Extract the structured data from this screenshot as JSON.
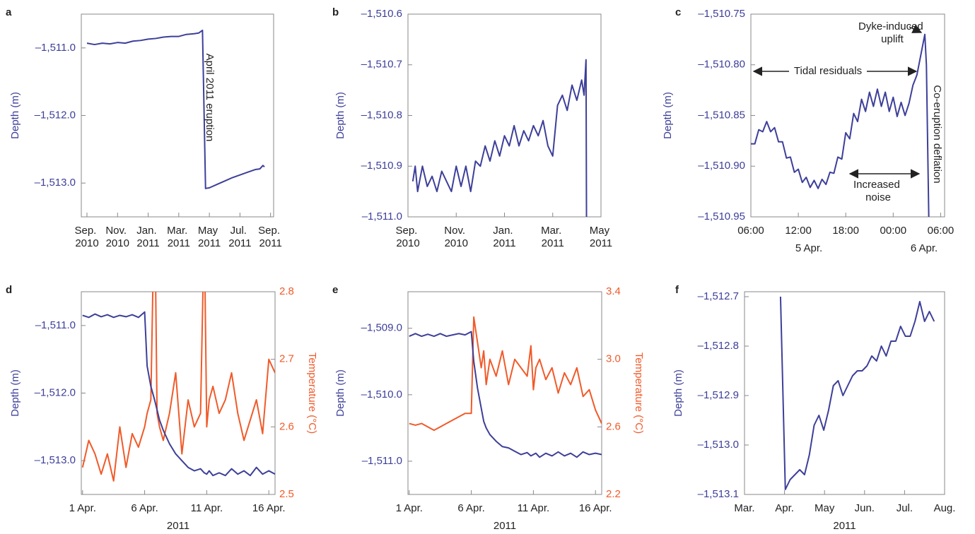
{
  "chart_data": [
    {
      "type": "line",
      "panel": "a",
      "y_label": "Depth (m)",
      "xlim": [
        -0.37,
        12.2
      ],
      "xticks": [
        {
          "value": 0,
          "label": "Sep.\n2010"
        },
        {
          "value": 2,
          "label": "Nov.\n2010"
        },
        {
          "value": 4,
          "label": "Jan.\n2011"
        },
        {
          "value": 6,
          "label": "Mar.\n2011"
        },
        {
          "value": 8,
          "label": "May\n2011"
        },
        {
          "value": 10,
          "label": "Jul.\n2011"
        },
        {
          "value": 12,
          "label": "Sep.\n2011"
        }
      ],
      "ylim": [
        -1513.5,
        -1510.5
      ],
      "yticks": [
        {
          "value": -1511,
          "label": "–1,511.0"
        },
        {
          "value": -1512,
          "label": "–1,512.0"
        },
        {
          "value": -1513,
          "label": "–1,513.0"
        }
      ],
      "annotations": [
        "April 2011 eruption"
      ],
      "x": [
        0,
        0.5,
        1,
        1.5,
        2,
        2.5,
        3,
        3.5,
        4,
        4.5,
        5,
        5.5,
        6,
        6.5,
        7,
        7.3,
        7.55,
        7.65,
        7.75,
        8,
        8.5,
        9,
        9.5,
        10,
        10.5,
        11,
        11.3,
        11.5,
        11.6
      ],
      "series": [
        {
          "color": "#3d3f99",
          "values": [
            -1510.93,
            -1510.95,
            -1510.93,
            -1510.94,
            -1510.92,
            -1510.93,
            -1510.9,
            -1510.89,
            -1510.87,
            -1510.86,
            -1510.84,
            -1510.83,
            -1510.83,
            -1510.8,
            -1510.79,
            -1510.78,
            -1510.74,
            -1511.9,
            -1513.08,
            -1513.07,
            -1513.02,
            -1512.97,
            -1512.92,
            -1512.88,
            -1512.84,
            -1512.8,
            -1512.79,
            -1512.74,
            -1512.76
          ]
        }
      ]
    },
    {
      "type": "line",
      "panel": "b",
      "y_label": "Depth (m)",
      "xlim": [
        0,
        8
      ],
      "xticks": [
        {
          "value": 0,
          "label": "Sep.\n2010"
        },
        {
          "value": 2,
          "label": "Nov.\n2010"
        },
        {
          "value": 4,
          "label": "Jan.\n2011"
        },
        {
          "value": 6,
          "label": "Mar.\n2011"
        },
        {
          "value": 8,
          "label": "May\n2011"
        }
      ],
      "ylim": [
        -1511.0,
        -1510.6
      ],
      "yticks": [
        {
          "value": -1510.6,
          "label": "–1,510.6"
        },
        {
          "value": -1510.7,
          "label": "–1,510.7"
        },
        {
          "value": -1510.8,
          "label": "–1,510.8"
        },
        {
          "value": -1510.9,
          "label": "–1,510.9"
        },
        {
          "value": -1511.0,
          "label": "–1,511.0"
        }
      ],
      "x": [
        0.2,
        0.3,
        0.4,
        0.6,
        0.8,
        1.0,
        1.2,
        1.4,
        1.6,
        1.8,
        2.0,
        2.2,
        2.4,
        2.6,
        2.8,
        3.0,
        3.2,
        3.4,
        3.6,
        3.8,
        4.0,
        4.2,
        4.4,
        4.6,
        4.8,
        5.0,
        5.2,
        5.4,
        5.6,
        5.8,
        6.0,
        6.2,
        6.4,
        6.6,
        6.8,
        7.0,
        7.2,
        7.3,
        7.38,
        7.4
      ],
      "series": [
        {
          "color": "#3d3f99",
          "values": [
            -1510.93,
            -1510.9,
            -1510.95,
            -1510.9,
            -1510.94,
            -1510.92,
            -1510.95,
            -1510.91,
            -1510.93,
            -1510.95,
            -1510.9,
            -1510.94,
            -1510.9,
            -1510.95,
            -1510.89,
            -1510.9,
            -1510.86,
            -1510.89,
            -1510.85,
            -1510.88,
            -1510.84,
            -1510.86,
            -1510.82,
            -1510.86,
            -1510.83,
            -1510.85,
            -1510.82,
            -1510.84,
            -1510.81,
            -1510.86,
            -1510.88,
            -1510.78,
            -1510.76,
            -1510.79,
            -1510.74,
            -1510.77,
            -1510.73,
            -1510.76,
            -1510.69,
            -1511.0
          ]
        }
      ]
    },
    {
      "type": "line",
      "panel": "c",
      "y_label": "Depth (m)",
      "xlim": [
        0,
        24.5
      ],
      "xticks": [
        {
          "value": 0,
          "label": "06:00"
        },
        {
          "value": 6,
          "label": "12:00"
        },
        {
          "value": 12,
          "label": "18:00"
        },
        {
          "value": 18,
          "label": "00:00"
        },
        {
          "value": 24,
          "label": "06:00"
        }
      ],
      "x_sublabels": [
        "5 Apr.",
        "6 Apr."
      ],
      "ylim": [
        -1510.95,
        -1510.75
      ],
      "yticks": [
        {
          "value": -1510.75,
          "label": "–1,510.75"
        },
        {
          "value": -1510.8,
          "label": "–1,510.80"
        },
        {
          "value": -1510.85,
          "label": "–1,510.85"
        },
        {
          "value": -1510.9,
          "label": "–1,510.90"
        },
        {
          "value": -1510.95,
          "label": "–1,510.95"
        }
      ],
      "annotations": [
        "Dyke-induced\nuplift",
        "Tidal residuals",
        "Increased\nnoise",
        "Co-eruption deflation"
      ],
      "x": [
        0,
        0.5,
        1,
        1.5,
        2,
        2.5,
        3,
        3.5,
        4,
        4.5,
        5,
        5.5,
        6,
        6.5,
        7,
        7.5,
        8,
        8.5,
        9,
        9.5,
        10,
        10.5,
        11,
        11.5,
        12,
        12.5,
        13,
        13.5,
        14,
        14.5,
        15,
        15.5,
        16,
        16.5,
        17,
        17.5,
        18,
        18.5,
        19,
        19.5,
        20,
        20.5,
        21,
        21.5,
        22,
        22.2,
        22.5
      ],
      "series": [
        {
          "color": "#3d3f99",
          "values": [
            -1510.878,
            -1510.878,
            -1510.864,
            -1510.866,
            -1510.856,
            -1510.866,
            -1510.862,
            -1510.876,
            -1510.876,
            -1510.892,
            -1510.891,
            -1510.906,
            -1510.903,
            -1510.916,
            -1510.911,
            -1510.921,
            -1510.914,
            -1510.922,
            -1510.913,
            -1510.918,
            -1510.906,
            -1510.907,
            -1510.891,
            -1510.893,
            -1510.867,
            -1510.873,
            -1510.848,
            -1510.856,
            -1510.834,
            -1510.846,
            -1510.827,
            -1510.841,
            -1510.824,
            -1510.841,
            -1510.827,
            -1510.846,
            -1510.832,
            -1510.851,
            -1510.837,
            -1510.85,
            -1510.838,
            -1510.82,
            -1510.81,
            -1510.79,
            -1510.77,
            -1510.8,
            -1510.95
          ]
        }
      ]
    },
    {
      "type": "line",
      "panel": "d",
      "y_label": "Depth (m)",
      "y2_label": "Temperature (°C)",
      "x_label": "2011",
      "xlim": [
        0.9,
        16.5
      ],
      "xticks": [
        {
          "value": 1,
          "label": "1 Apr."
        },
        {
          "value": 6,
          "label": "6 Apr."
        },
        {
          "value": 11,
          "label": "11 Apr."
        },
        {
          "value": 16,
          "label": "16 Apr."
        }
      ],
      "ylim": [
        -1513.5,
        -1510.5
      ],
      "yticks": [
        {
          "value": -1511,
          "label": "–1,511.0"
        },
        {
          "value": -1512,
          "label": "–1,512.0"
        },
        {
          "value": -1513,
          "label": "–1,513.0"
        }
      ],
      "y2lim": [
        2.5,
        2.8
      ],
      "y2ticks": [
        2.5,
        2.6,
        2.7,
        2.8
      ],
      "x": [
        1,
        1.5,
        2,
        2.5,
        3,
        3.5,
        4,
        4.5,
        5,
        5.5,
        6,
        6.2,
        6.5,
        6.8,
        7,
        7.2,
        7.5,
        8,
        8.5,
        9,
        9.5,
        10,
        10.5,
        10.8,
        11,
        11.2,
        11.5,
        12,
        12.5,
        13,
        13.5,
        14,
        14.5,
        15,
        15.5,
        16,
        16.5
      ],
      "series": [
        {
          "color": "#3d3f99",
          "values": [
            -1510.85,
            -1510.88,
            -1510.83,
            -1510.87,
            -1510.84,
            -1510.88,
            -1510.85,
            -1510.87,
            -1510.84,
            -1510.88,
            -1510.8,
            -1511.6,
            -1511.9,
            -1512.1,
            -1512.25,
            -1512.4,
            -1512.55,
            -1512.75,
            -1512.9,
            -1513.0,
            -1513.1,
            -1513.15,
            -1513.12,
            -1513.18,
            -1513.2,
            -1513.15,
            -1513.22,
            -1513.18,
            -1513.22,
            -1513.12,
            -1513.2,
            -1513.15,
            -1513.22,
            -1513.1,
            -1513.2,
            -1513.15,
            -1513.2
          ]
        },
        {
          "color": "#f15a29",
          "axis": "y2",
          "values": [
            2.54,
            2.58,
            2.56,
            2.53,
            2.56,
            2.52,
            2.6,
            2.54,
            2.59,
            2.57,
            2.6,
            2.62,
            2.64,
            2.95,
            2.62,
            2.6,
            2.58,
            2.62,
            2.68,
            2.56,
            2.64,
            2.6,
            2.62,
            2.9,
            2.6,
            2.64,
            2.66,
            2.62,
            2.64,
            2.68,
            2.62,
            2.58,
            2.61,
            2.64,
            2.59,
            2.7,
            2.68
          ]
        }
      ]
    },
    {
      "type": "line",
      "panel": "e",
      "y_label": "Depth (m)",
      "y2_label": "Temperature (°C)",
      "x_label": "2011",
      "xlim": [
        0.9,
        16.5
      ],
      "xticks": [
        {
          "value": 1,
          "label": "1 Apr."
        },
        {
          "value": 6,
          "label": "6 Apr."
        },
        {
          "value": 11,
          "label": "11 Apr."
        },
        {
          "value": 16,
          "label": "16 Apr."
        }
      ],
      "ylim": [
        -1511.5,
        -1508.45
      ],
      "yticks": [
        {
          "value": -1509,
          "label": "–1,509.0"
        },
        {
          "value": -1510,
          "label": "–1,510.0"
        },
        {
          "value": -1511,
          "label": "–1,511.0"
        }
      ],
      "y2lim": [
        2.2,
        3.4
      ],
      "y2ticks": [
        2.2,
        2.6,
        {
          "value": 3,
          "label": "3.0"
        },
        3.4
      ],
      "x": [
        1,
        1.5,
        2,
        2.5,
        3,
        3.5,
        4,
        4.5,
        5,
        5.5,
        6,
        6.2,
        6.5,
        6.8,
        7,
        7.2,
        7.5,
        8,
        8.5,
        9,
        9.5,
        10,
        10.5,
        10.8,
        11,
        11.2,
        11.5,
        12,
        12.5,
        13,
        13.5,
        14,
        14.5,
        15,
        15.5,
        16,
        16.5
      ],
      "series": [
        {
          "color": "#3d3f99",
          "values": [
            -1509.12,
            -1509.08,
            -1509.12,
            -1509.09,
            -1509.12,
            -1509.08,
            -1509.12,
            -1509.1,
            -1509.08,
            -1509.1,
            -1509.05,
            -1509.5,
            -1509.9,
            -1510.2,
            -1510.4,
            -1510.5,
            -1510.6,
            -1510.7,
            -1510.78,
            -1510.8,
            -1510.85,
            -1510.9,
            -1510.87,
            -1510.92,
            -1510.9,
            -1510.88,
            -1510.94,
            -1510.88,
            -1510.92,
            -1510.86,
            -1510.92,
            -1510.88,
            -1510.94,
            -1510.86,
            -1510.9,
            -1510.88,
            -1510.9
          ]
        },
        {
          "color": "#f15a29",
          "axis": "y2",
          "values": [
            2.62,
            2.61,
            2.62,
            2.6,
            2.58,
            2.6,
            2.62,
            2.64,
            2.66,
            2.68,
            2.68,
            3.25,
            3.1,
            2.95,
            3.05,
            2.85,
            3.0,
            2.9,
            3.05,
            2.85,
            3.0,
            2.95,
            2.9,
            3.08,
            2.82,
            2.95,
            3.0,
            2.88,
            2.95,
            2.8,
            2.92,
            2.85,
            2.95,
            2.78,
            2.82,
            2.7,
            2.62
          ]
        }
      ]
    },
    {
      "type": "line",
      "panel": "f",
      "y_label": "Depth (m)",
      "x_label": "2011",
      "xlim": [
        0,
        5
      ],
      "xticks": [
        {
          "value": 0,
          "label": "Mar."
        },
        {
          "value": 1,
          "label": "Apr."
        },
        {
          "value": 2,
          "label": "May"
        },
        {
          "value": 3,
          "label": "Jun."
        },
        {
          "value": 4,
          "label": "Jul."
        },
        {
          "value": 5,
          "label": "Aug."
        }
      ],
      "ylim": [
        -1513.1,
        -1512.69
      ],
      "yticks": [
        {
          "value": -1512.7,
          "label": "–1,512.7"
        },
        {
          "value": -1512.8,
          "label": "–1,512.8"
        },
        {
          "value": -1512.9,
          "label": "–1,512.9"
        },
        {
          "value": -1513.0,
          "label": "–1,513.0"
        },
        {
          "value": -1513.1,
          "label": "–1,513.1"
        }
      ],
      "x": [
        0.9,
        1.02,
        1.14,
        1.26,
        1.38,
        1.5,
        1.62,
        1.74,
        1.86,
        1.98,
        2.1,
        2.22,
        2.34,
        2.46,
        2.58,
        2.7,
        2.82,
        2.94,
        3.06,
        3.18,
        3.3,
        3.42,
        3.54,
        3.66,
        3.78,
        3.9,
        4.02,
        4.14,
        4.26,
        4.38,
        4.5,
        4.62,
        4.74
      ],
      "series": [
        {
          "color": "#3d3f99",
          "values": [
            -1512.7,
            -1513.09,
            -1513.07,
            -1513.06,
            -1513.05,
            -1513.06,
            -1513.02,
            -1512.96,
            -1512.94,
            -1512.97,
            -1512.93,
            -1512.88,
            -1512.87,
            -1512.9,
            -1512.88,
            -1512.86,
            -1512.85,
            -1512.85,
            -1512.84,
            -1512.82,
            -1512.83,
            -1512.8,
            -1512.82,
            -1512.79,
            -1512.79,
            -1512.76,
            -1512.78,
            -1512.78,
            -1512.75,
            -1512.71,
            -1512.75,
            -1512.73,
            -1512.75
          ]
        }
      ]
    }
  ]
}
